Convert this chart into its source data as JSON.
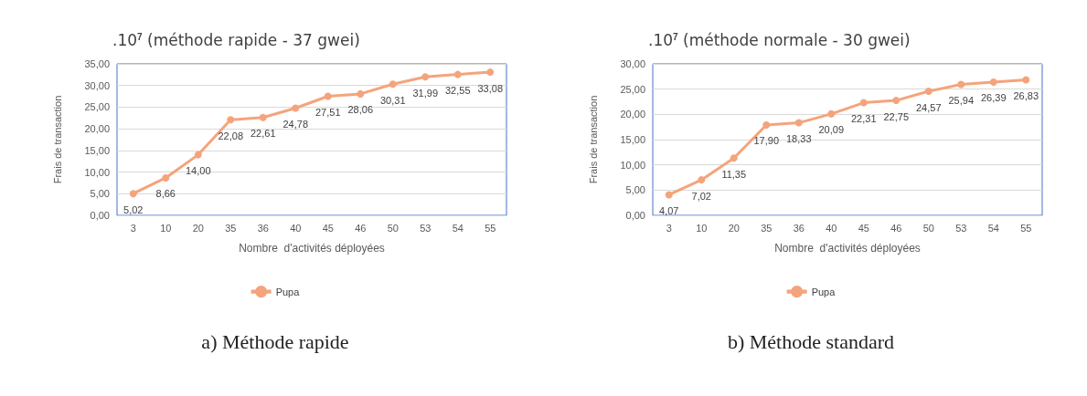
{
  "chart_data": [
    {
      "type": "line",
      "title": ".10$^{7}$ (méthode rapide - 37 gwei)",
      "xlabel": "Nombre  d'activités déployées",
      "ylabel": "Frais de transaction",
      "categories": [
        "3",
        "10",
        "20",
        "35",
        "36",
        "40",
        "45",
        "46",
        "50",
        "53",
        "54",
        "55"
      ],
      "series": [
        {
          "name": "Pupa",
          "color": "#f4a47c",
          "values": [
            5.02,
            8.66,
            14.0,
            22.08,
            22.61,
            24.78,
            27.51,
            28.06,
            30.31,
            31.99,
            32.55,
            33.08
          ],
          "value_labels": [
            "5,02",
            "8,66",
            "14,00",
            "22,08",
            "22,61",
            "24,78",
            "27,51",
            "28,06",
            "30,31",
            "31,99",
            "32,55",
            "33,08"
          ]
        }
      ],
      "ylim": [
        0,
        35
      ],
      "yticks": [
        {
          "value": 0,
          "label": "0,00"
        },
        {
          "value": 5,
          "label": "5,00"
        },
        {
          "value": 10,
          "label": "10,00"
        },
        {
          "value": 15,
          "label": "15,00"
        },
        {
          "value": 20,
          "label": "20,00"
        },
        {
          "value": 25,
          "label": "25,00"
        },
        {
          "value": 30,
          "label": "30,00"
        },
        {
          "value": 35,
          "label": "35,00"
        }
      ],
      "grid": "y",
      "legend": "bottom",
      "marker": "circle",
      "line_style": "solid",
      "annotations": [
        "a) Méthode rapide"
      ]
    },
    {
      "type": "line",
      "title": ".10$^{7}$ (méthode normale - 30 gwei)",
      "xlabel": "Nombre  d'activités déployées",
      "ylabel": "Frais de transaction",
      "categories": [
        "3",
        "10",
        "20",
        "35",
        "36",
        "40",
        "45",
        "46",
        "50",
        "53",
        "54",
        "55"
      ],
      "series": [
        {
          "name": "Pupa",
          "color": "#f4a47c",
          "values": [
            4.07,
            7.02,
            11.35,
            17.9,
            18.33,
            20.09,
            22.31,
            22.75,
            24.57,
            25.94,
            26.39,
            26.83
          ],
          "value_labels": [
            "4,07",
            "7,02",
            "11,35",
            "17,90",
            "18,33",
            "20,09",
            "22,31",
            "22,75",
            "24,57",
            "25,94",
            "26,39",
            "26,83"
          ]
        }
      ],
      "ylim": [
        0,
        30
      ],
      "yticks": [
        {
          "value": 0,
          "label": "0,00"
        },
        {
          "value": 5,
          "label": "5,00"
        },
        {
          "value": 10,
          "label": "10,00"
        },
        {
          "value": 15,
          "label": "15,00"
        },
        {
          "value": 20,
          "label": "20,00"
        },
        {
          "value": 25,
          "label": "25,00"
        },
        {
          "value": 30,
          "label": "30,00"
        }
      ],
      "grid": "y",
      "legend": "bottom",
      "marker": "circle",
      "line_style": "solid",
      "annotations": [
        "b) Méthode standard"
      ]
    }
  ]
}
